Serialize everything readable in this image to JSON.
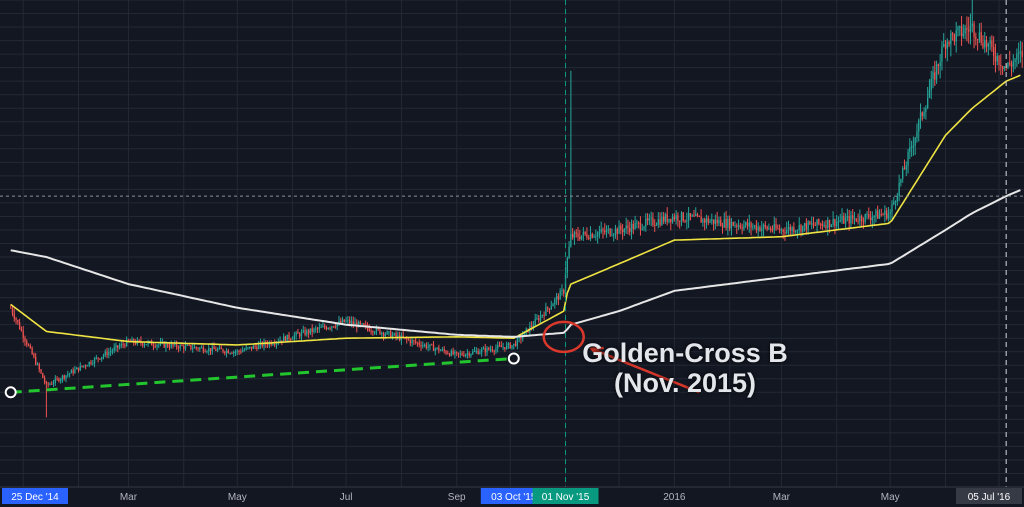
{
  "chart_data": {
    "type": "candlestick",
    "x_axis_labels": [
      {
        "text": "25 Dec '14",
        "highlight": "#2962ff"
      },
      {
        "text": "Mar"
      },
      {
        "text": "May"
      },
      {
        "text": "Jul"
      },
      {
        "text": "Sep"
      },
      {
        "text": "03 Oct '15",
        "highlight": "#2962ff"
      },
      {
        "text": "01 Nov '15",
        "highlight": "#089981"
      },
      {
        "text": "2016"
      },
      {
        "text": "Mar"
      },
      {
        "text": "May"
      },
      {
        "text": "05 Jul '16",
        "highlight": "#363a45"
      }
    ],
    "x_dates": [
      "2014-12-25",
      "2015-01-14",
      "2015-03-01",
      "2015-05-01",
      "2015-07-01",
      "2015-09-01",
      "2015-10-03",
      "2015-10-31",
      "2015-11-01",
      "2015-11-04",
      "2015-12-01",
      "2016-01-01",
      "2016-03-01",
      "2016-05-01",
      "2016-06-01",
      "2016-06-16",
      "2016-07-05",
      "2016-07-14"
    ],
    "series": [
      {
        "style": "candles",
        "color_up": "#26a69a",
        "color_down": "#ef5350",
        "close": [
          305,
          190,
          255,
          240,
          285,
          235,
          250,
          330,
          360,
          410,
          420,
          440,
          420,
          445,
          700,
          720,
          660,
          680
        ]
      },
      {
        "style": "line",
        "color": "#f0e442",
        "values": [
          310,
          270,
          255,
          250,
          260,
          262,
          260,
          300,
          320,
          340,
          370,
          405,
          410,
          430,
          560,
          600,
          640,
          650
        ]
      },
      {
        "style": "line",
        "color": "#e6e6e6",
        "values": [
          390,
          380,
          340,
          305,
          280,
          265,
          262,
          268,
          270,
          280,
          300,
          330,
          350,
          370,
          420,
          445,
          470,
          480
        ]
      }
    ],
    "support_line": {
      "color": "#22c52d",
      "points": [
        {
          "date": "2014-12-25",
          "value": 180
        },
        {
          "date": "2015-10-03",
          "value": 230
        }
      ]
    },
    "pivot_markers": [
      {
        "date": "2014-12-25",
        "value": 180
      },
      {
        "date": "2015-10-03",
        "value": 230
      }
    ],
    "crosshair": {
      "date": "2015-11-01",
      "value": 470
    },
    "dashed_markers": [
      "2015-11-01",
      "2016-07-05"
    ],
    "annotation": {
      "lines": [
        "Golden-Cross B",
        "(Nov. 2015)"
      ],
      "circle_at": {
        "date": "2015-10-31",
        "value": 262
      },
      "arrow_from": {
        "date": "2016-01-15",
        "value": 180
      },
      "color": "#d9382b"
    }
  }
}
